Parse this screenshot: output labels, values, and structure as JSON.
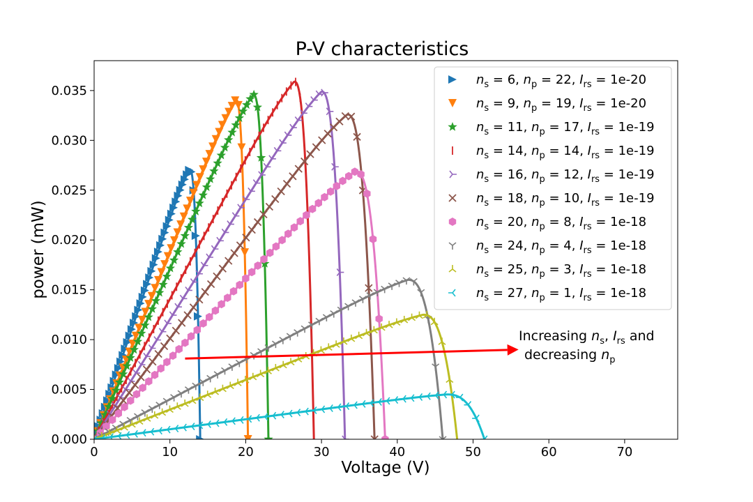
{
  "chart_data": {
    "type": "line",
    "title": "P-V characteristics",
    "xlabel": "Voltage (V)",
    "ylabel": "power (mW)",
    "xlim": [
      0,
      77
    ],
    "ylim": [
      0,
      0.038
    ],
    "xticks": [
      0,
      10,
      20,
      30,
      40,
      50,
      60,
      70
    ],
    "yticks": [
      0.0,
      0.005,
      0.01,
      0.015,
      0.02,
      0.025,
      0.03,
      0.035
    ],
    "ytick_labels": [
      "0.000",
      "0.005",
      "0.010",
      "0.015",
      "0.020",
      "0.025",
      "0.030",
      "0.035"
    ],
    "grid": false,
    "legend_position": "top-right",
    "series": [
      {
        "name": "ns = 6, np = 22, Irs = 1e-20",
        "ns": "6",
        "np": "22",
        "irs": "1e-20",
        "color": "#1f77b4",
        "marker": "triangle-right",
        "vmpp": 12.6,
        "pmax": 0.0271,
        "voc": 14.0
      },
      {
        "name": "ns = 9, np = 19, Irs = 1e-20",
        "ns": "9",
        "np": "19",
        "irs": "1e-20",
        "color": "#ff7f0e",
        "marker": "triangle-down",
        "vmpp": 18.7,
        "pmax": 0.0341,
        "voc": 20.3
      },
      {
        "name": "ns = 11, np = 17, Irs = 1e-19",
        "ns": "11",
        "np": "17",
        "irs": "1e-19",
        "color": "#2ca02c",
        "marker": "star",
        "vmpp": 21.0,
        "pmax": 0.0346,
        "voc": 23.0
      },
      {
        "name": "ns = 14, np = 14, Irs = 1e-19",
        "ns": "14",
        "np": "14",
        "irs": "1e-19",
        "color": "#d62728",
        "marker": "vline",
        "vmpp": 26.4,
        "pmax": 0.0359,
        "voc": 29.0
      },
      {
        "name": "ns = 16, np = 12, Irs = 1e-19",
        "ns": "16",
        "np": "12",
        "irs": "1e-19",
        "color": "#9467bd",
        "marker": "tri-right",
        "vmpp": 30.0,
        "pmax": 0.0349,
        "voc": 33.1
      },
      {
        "name": "ns = 18, np = 10, Irs = 1e-19",
        "ns": "18",
        "np": "10",
        "irs": "1e-19",
        "color": "#8c564b",
        "marker": "x",
        "vmpp": 33.4,
        "pmax": 0.0326,
        "voc": 37.0
      },
      {
        "name": "ns = 20, np = 8, Irs = 1e-18",
        "ns": "20",
        "np": "8",
        "irs": "1e-18",
        "color": "#e377c2",
        "marker": "hexagon",
        "vmpp": 34.5,
        "pmax": 0.0269,
        "voc": 38.4
      },
      {
        "name": "ns = 24, np = 4, Irs = 1e-18",
        "ns": "24",
        "np": "4",
        "irs": "1e-18",
        "color": "#7f7f7f",
        "marker": "tri-down",
        "vmpp": 41.4,
        "pmax": 0.016,
        "voc": 46.0
      },
      {
        "name": "ns = 25, np = 3, Irs = 1e-18",
        "ns": "25",
        "np": "3",
        "irs": "1e-18",
        "color": "#bcbd22",
        "marker": "tri-up",
        "vmpp": 43.4,
        "pmax": 0.0125,
        "voc": 47.9
      },
      {
        "name": "ns = 27, np = 1, Irs = 1e-18",
        "ns": "27",
        "np": "1",
        "irs": "1e-18",
        "color": "#17becf",
        "marker": "tri-left",
        "vmpp": 46.5,
        "pmax": 0.0045,
        "voc": 51.5
      }
    ],
    "annotation": {
      "line1": "Increasing ns, Irs and",
      "line2": "decreasing np",
      "arrow_color": "#ff0000",
      "arrow_from": [
        12,
        0.0081
      ],
      "arrow_to": [
        56,
        0.009
      ]
    }
  }
}
